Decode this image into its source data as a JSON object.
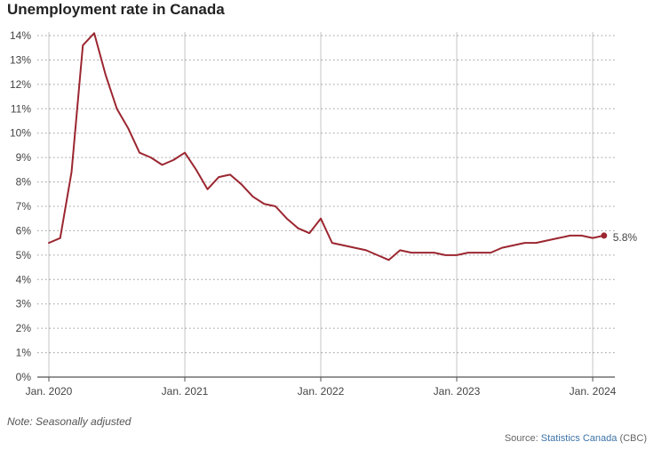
{
  "chart_data": {
    "type": "line",
    "title": "Unemployment rate in Canada",
    "xlabel": "",
    "ylabel": "",
    "ylim": [
      0,
      14
    ],
    "y_ticks": [
      0,
      1,
      2,
      3,
      4,
      5,
      6,
      7,
      8,
      9,
      10,
      11,
      12,
      13,
      14
    ],
    "y_tick_suffix": "%",
    "x_ticks": [
      {
        "label": "Jan. 2020",
        "index": 0
      },
      {
        "label": "Jan. 2021",
        "index": 12
      },
      {
        "label": "Jan. 2022",
        "index": 24
      },
      {
        "label": "Jan. 2023",
        "index": 36
      },
      {
        "label": "Jan. 2024",
        "index": 48
      }
    ],
    "grid": true,
    "x_start": "Jan. 2020",
    "x_end": "Feb. 2024",
    "series": [
      {
        "name": "Unemployment rate",
        "color": "#9b2630",
        "values": [
          5.5,
          5.7,
          8.4,
          13.6,
          14.1,
          12.4,
          11.0,
          10.2,
          9.2,
          9.0,
          8.7,
          8.9,
          9.2,
          8.5,
          7.7,
          8.2,
          8.3,
          7.9,
          7.4,
          7.1,
          7.0,
          6.5,
          6.1,
          5.9,
          6.5,
          5.5,
          5.4,
          5.3,
          5.2,
          5.0,
          4.8,
          5.2,
          5.1,
          5.1,
          5.1,
          5.0,
          5.0,
          5.1,
          5.1,
          5.1,
          5.3,
          5.4,
          5.5,
          5.5,
          5.6,
          5.7,
          5.8,
          5.8,
          5.7,
          5.8
        ],
        "end_label": "5.8%"
      }
    ]
  },
  "note": "Note: Seasonally adjusted",
  "source": {
    "prefix": "Source: ",
    "link_text": "Statistics Canada",
    "suffix": " (CBC)"
  }
}
